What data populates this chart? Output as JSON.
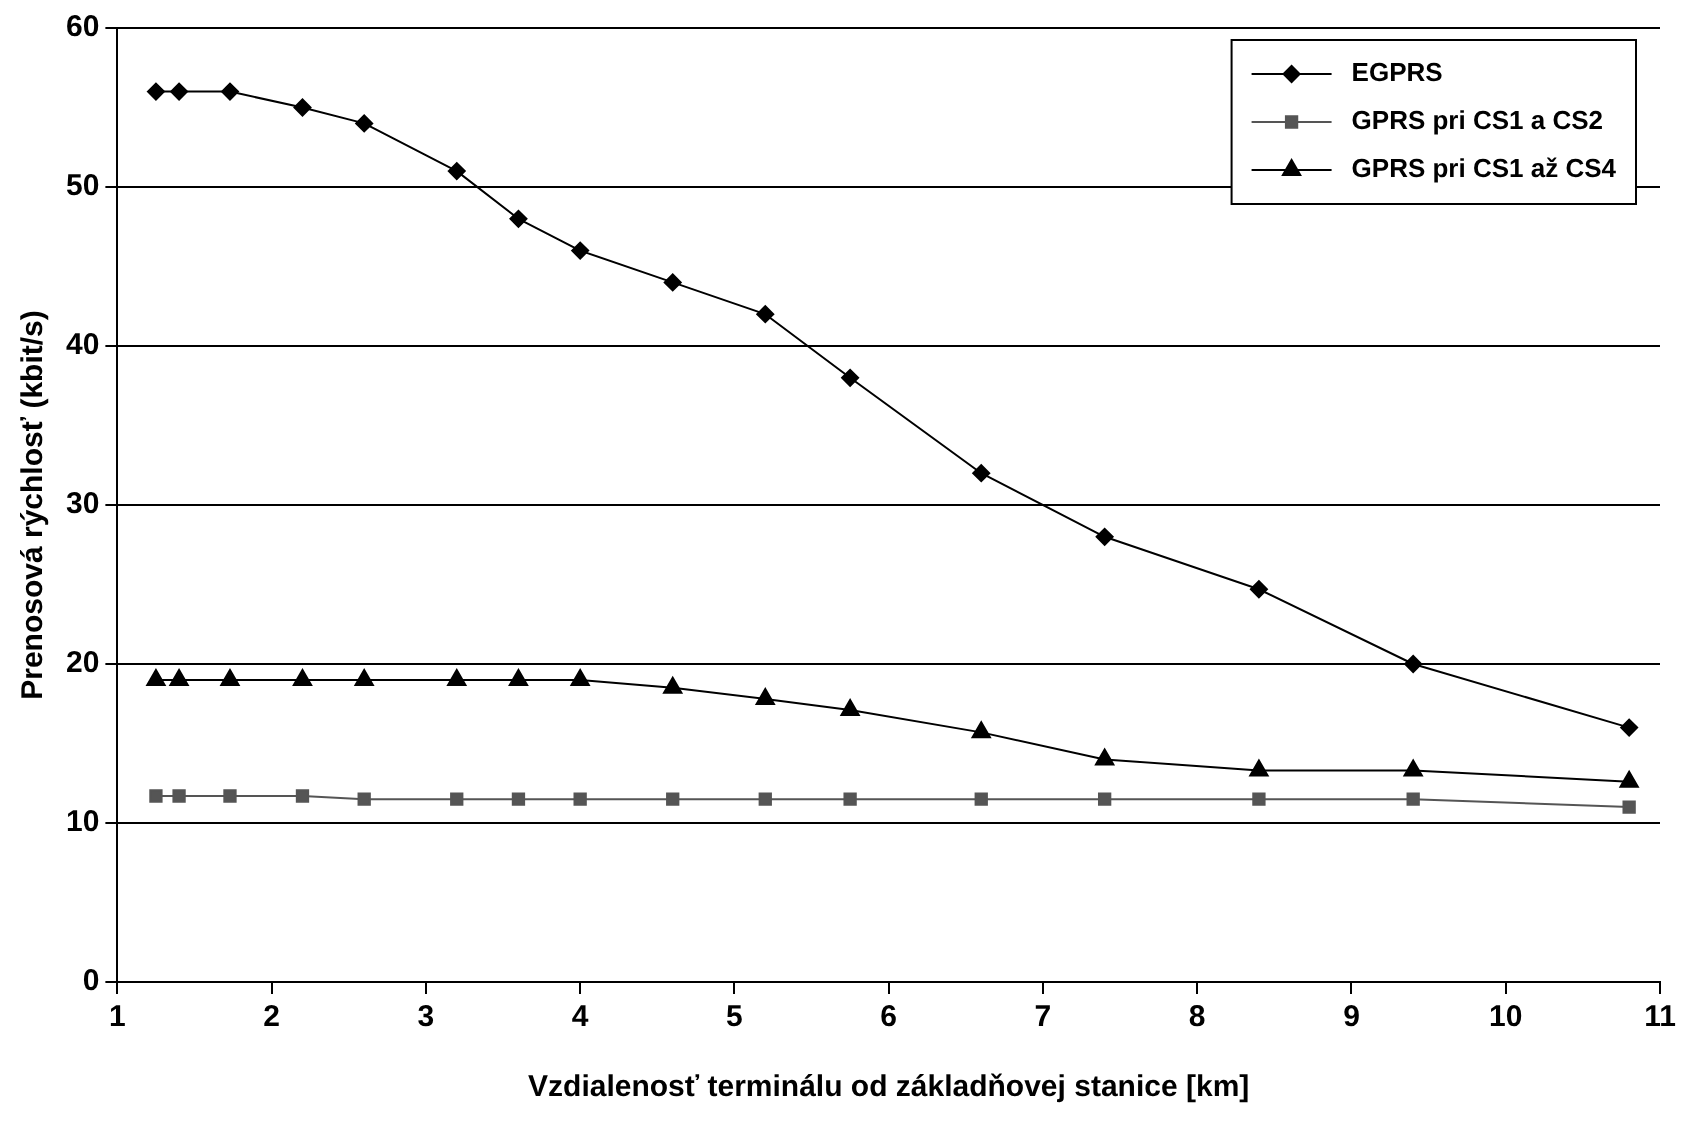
{
  "chart_data": {
    "type": "line",
    "xlabel": "Vzdialenosť terminálu od základňovej stanice [km]",
    "ylabel": "Prenosová rýchlosť (kbit/s)",
    "x": [
      1.25,
      1.4,
      1.73,
      2.2,
      2.6,
      3.2,
      3.6,
      4,
      4.6,
      5.2,
      5.75,
      6.6,
      7.4,
      8.4,
      9.4,
      10.8
    ],
    "series": [
      {
        "name": "EGPRS",
        "color": "#000000",
        "marker": "diamond",
        "values": [
          56,
          56,
          56,
          55,
          54,
          51,
          48,
          46,
          44,
          42,
          38,
          32,
          28,
          24.7,
          20,
          16
        ]
      },
      {
        "name": "GPRS pri CS1 a CS2",
        "color": "#555555",
        "marker": "square",
        "values": [
          11.7,
          11.7,
          11.7,
          11.7,
          11.5,
          11.5,
          11.5,
          11.5,
          11.5,
          11.5,
          11.5,
          11.5,
          11.5,
          11.5,
          11.5,
          11
        ]
      },
      {
        "name": "GPRS pri CS1 až CS4",
        "color": "#000000",
        "marker": "triangle",
        "values": [
          19,
          19,
          19,
          19,
          19,
          19,
          19,
          19,
          18.5,
          17.8,
          17.1,
          15.7,
          14,
          13.3,
          13.3,
          12.6
        ]
      }
    ],
    "xlim": [
      1,
      11
    ],
    "xticks": [
      1,
      2,
      3,
      4,
      5,
      6,
      7,
      8,
      9,
      10,
      11
    ],
    "ylim": [
      0,
      60
    ],
    "yticks": [
      0,
      10,
      20,
      30,
      40,
      50,
      60
    ],
    "grid": "y",
    "legend": "top right",
    "line_style": "solid"
  }
}
